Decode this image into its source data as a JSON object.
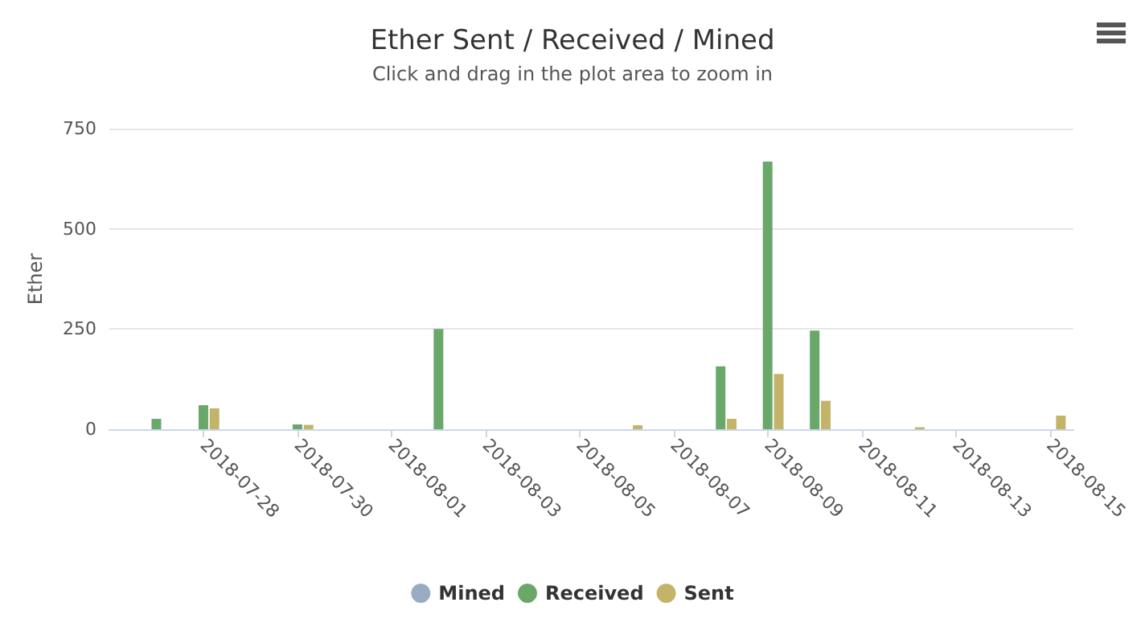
{
  "chart_data": {
    "type": "bar",
    "title": "Ether Sent / Received / Mined",
    "subtitle": "Click and drag in the plot area to zoom in",
    "ylabel": "Ether",
    "x": [
      "2018-07-27",
      "2018-07-28",
      "2018-07-30",
      "2018-08-02",
      "2018-08-06",
      "2018-08-08",
      "2018-08-09",
      "2018-08-10",
      "2018-08-12",
      "2018-08-15"
    ],
    "series": [
      {
        "name": "Mined",
        "color": "#9aabc4",
        "values": [
          null,
          null,
          null,
          null,
          null,
          null,
          null,
          null,
          null,
          null
        ]
      },
      {
        "name": "Received",
        "color": "#6aa86a",
        "values": [
          26,
          60,
          12,
          250,
          null,
          157,
          668,
          246,
          null,
          null
        ]
      },
      {
        "name": "Sent",
        "color": "#c4b46a",
        "values": [
          null,
          52,
          11,
          null,
          10,
          26,
          138,
          71,
          5,
          34
        ]
      }
    ],
    "xlim": [
      "2018-07-26",
      "2018-08-15T12:00"
    ],
    "xticks": [
      "2018-07-28",
      "2018-07-30",
      "2018-08-01",
      "2018-08-03",
      "2018-08-05",
      "2018-08-07",
      "2018-08-09",
      "2018-08-11",
      "2018-08-13",
      "2018-08-15"
    ],
    "ylim": [
      0,
      750
    ],
    "yticks": [
      0,
      250,
      500,
      750
    ],
    "grid": "y",
    "legend": "bottom"
  }
}
